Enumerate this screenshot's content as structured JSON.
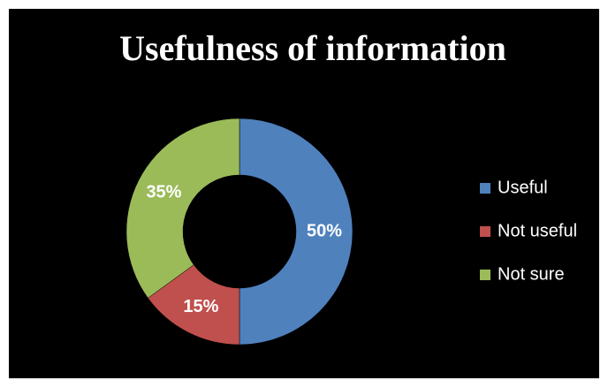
{
  "chart_data": {
    "type": "donut",
    "title": "Usefulness of information",
    "categories": [
      "Useful",
      "Not useful",
      "Not sure"
    ],
    "values": [
      50,
      15,
      35
    ],
    "value_labels": [
      "50%",
      "15%",
      "35%"
    ],
    "colors": [
      "#4f81bd",
      "#c0504d",
      "#9bbb59"
    ],
    "legend": "right"
  }
}
